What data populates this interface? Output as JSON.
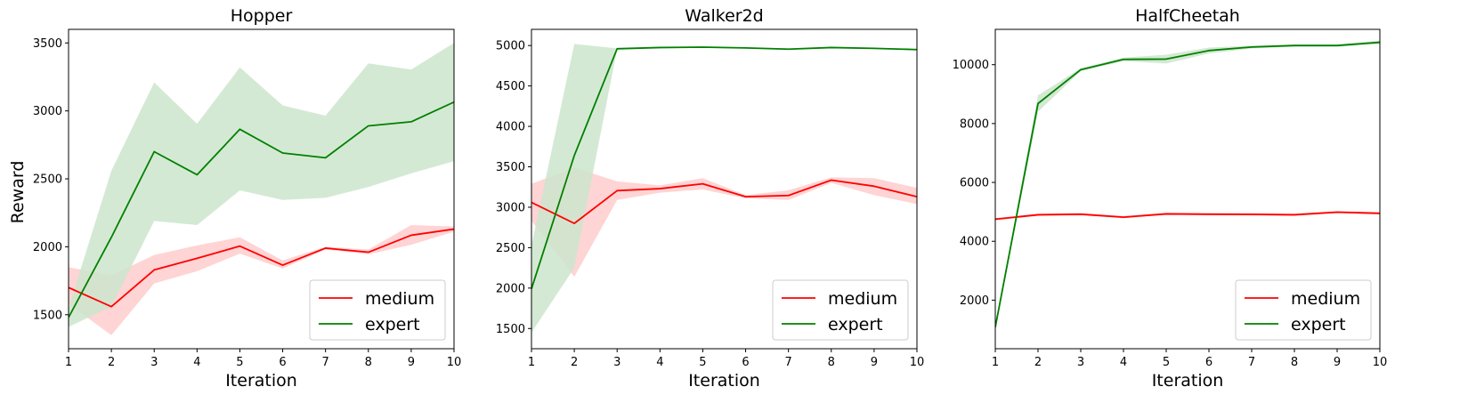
{
  "figure": {
    "ylabel": "Reward"
  },
  "chart_data": [
    {
      "type": "line",
      "title": "Hopper",
      "xlabel": "Iteration",
      "ylabel": "Reward",
      "x": [
        1,
        2,
        3,
        4,
        5,
        6,
        7,
        8,
        9,
        10
      ],
      "xlim": [
        1,
        10
      ],
      "ylim": [
        1250,
        3600
      ],
      "yticks": [
        1500,
        2000,
        2500,
        3000,
        3500
      ],
      "legend": "lower right",
      "series": [
        {
          "name": "medium",
          "color": "#ff0000",
          "fill": "#ffcccc",
          "values": [
            1700,
            1560,
            1830,
            1915,
            2005,
            1865,
            1990,
            1960,
            2085,
            2130
          ],
          "lower": [
            1580,
            1350,
            1730,
            1820,
            1950,
            1840,
            1980,
            1945,
            2015,
            2110
          ],
          "upper": [
            1850,
            1790,
            1940,
            2010,
            2070,
            1900,
            2000,
            1980,
            2160,
            2150
          ]
        },
        {
          "name": "expert",
          "color": "#008000",
          "fill": "#cce5cc",
          "values": [
            1480,
            2070,
            2700,
            2530,
            2865,
            2690,
            2655,
            2890,
            2920,
            3065
          ],
          "lower": [
            1410,
            1560,
            2190,
            2160,
            2415,
            2345,
            2360,
            2440,
            2540,
            2630
          ],
          "upper": [
            1550,
            2560,
            3210,
            2905,
            3320,
            3040,
            2965,
            3350,
            3305,
            3500
          ]
        }
      ]
    },
    {
      "type": "line",
      "title": "Walker2d",
      "xlabel": "Iteration",
      "ylabel": "",
      "x": [
        1,
        2,
        3,
        4,
        5,
        6,
        7,
        8,
        9,
        10
      ],
      "xlim": [
        1,
        10
      ],
      "ylim": [
        1250,
        5200
      ],
      "yticks": [
        1500,
        2000,
        2500,
        3000,
        3500,
        4000,
        4500,
        5000
      ],
      "legend": "lower right",
      "series": [
        {
          "name": "medium",
          "color": "#ff0000",
          "fill": "#ffcccc",
          "values": [
            3060,
            2800,
            3205,
            3230,
            3290,
            3130,
            3145,
            3335,
            3260,
            3130
          ],
          "lower": [
            2830,
            2140,
            3090,
            3180,
            3220,
            3110,
            3090,
            3300,
            3150,
            3040
          ],
          "upper": [
            3290,
            3490,
            3320,
            3270,
            3360,
            3150,
            3210,
            3370,
            3360,
            3240
          ]
        },
        {
          "name": "expert",
          "color": "#008000",
          "fill": "#cce5cc",
          "values": [
            1990,
            3640,
            4960,
            4975,
            4980,
            4970,
            4955,
            4975,
            4965,
            4950
          ],
          "lower": [
            1450,
            2250,
            4955,
            4970,
            4975,
            4965,
            4950,
            4970,
            4960,
            4945
          ],
          "upper": [
            2530,
            5020,
            4965,
            4980,
            4985,
            4975,
            4960,
            4980,
            4970,
            4955
          ]
        }
      ]
    },
    {
      "type": "line",
      "title": "HalfCheetah",
      "xlabel": "Iteration",
      "ylabel": "",
      "x": [
        1,
        2,
        3,
        4,
        5,
        6,
        7,
        8,
        9,
        10
      ],
      "xlim": [
        1,
        10
      ],
      "ylim": [
        350,
        11200
      ],
      "yticks": [
        2000,
        4000,
        6000,
        8000,
        10000
      ],
      "legend": "lower right",
      "series": [
        {
          "name": "medium",
          "color": "#ff0000",
          "fill": "#ffcccc",
          "values": [
            4750,
            4900,
            4920,
            4820,
            4930,
            4920,
            4915,
            4900,
            4990,
            4950
          ],
          "lower": [
            4710,
            4860,
            4880,
            4780,
            4890,
            4880,
            4875,
            4860,
            4950,
            4910
          ],
          "upper": [
            4790,
            4940,
            4960,
            4860,
            4970,
            4960,
            4955,
            4940,
            5030,
            4990
          ]
        },
        {
          "name": "expert",
          "color": "#008000",
          "fill": "#cce5cc",
          "values": [
            1080,
            8680,
            9830,
            10180,
            10190,
            10480,
            10600,
            10650,
            10650,
            10760
          ],
          "lower": [
            1000,
            8400,
            9780,
            10120,
            10040,
            10380,
            10550,
            10610,
            10610,
            10700
          ],
          "upper": [
            1160,
            8960,
            9880,
            10240,
            10340,
            10580,
            10650,
            10690,
            10690,
            10820
          ]
        }
      ]
    }
  ]
}
